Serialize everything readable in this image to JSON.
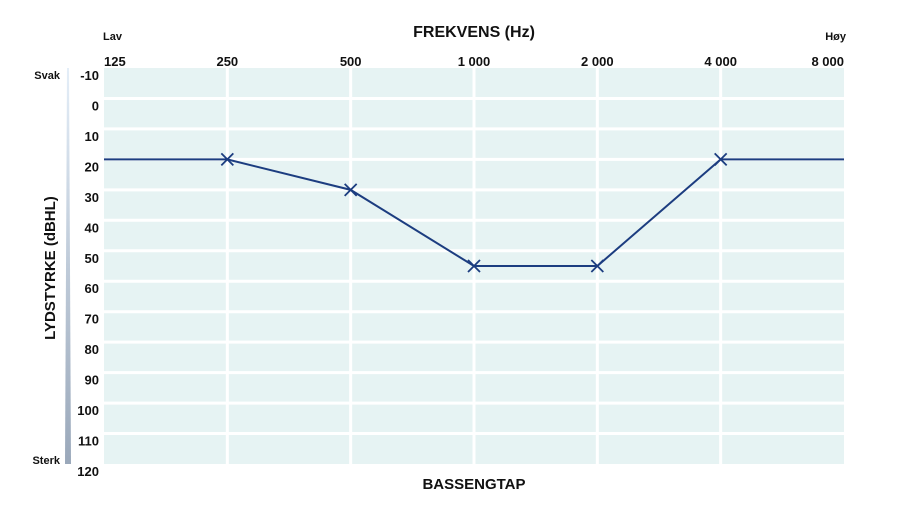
{
  "chart_data": {
    "type": "line",
    "title": "FREKVENS (Hz)",
    "xlabel": "BASSENGTAP",
    "ylabel": "LYDSTYRKE (dBHL)",
    "x_low_label": "Lav",
    "x_high_label": "Høy",
    "y_top_label": "Svak",
    "y_bottom_label": "Sterk",
    "categories": [
      "125",
      "250",
      "500",
      "1 000",
      "2 000",
      "4 000",
      "8 000"
    ],
    "y_ticks": [
      "-10",
      "0",
      "10",
      "20",
      "30",
      "40",
      "50",
      "60",
      "70",
      "80",
      "90",
      "100",
      "110",
      "120"
    ],
    "ylim": [
      -10,
      120
    ],
    "y_inverted": true,
    "grid": true,
    "series": [
      {
        "values": [
          20,
          20,
          30,
          55,
          55,
          20,
          20
        ],
        "markers": [
          false,
          true,
          true,
          true,
          true,
          true,
          false
        ],
        "marker": "x"
      }
    ],
    "colors": {
      "line": "#1c3d80",
      "plot_bg": "#e6f3f3",
      "grid": "#ffffff"
    }
  }
}
